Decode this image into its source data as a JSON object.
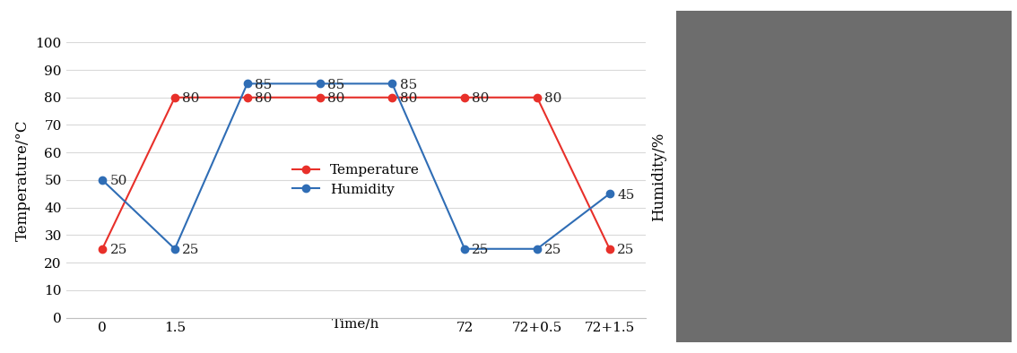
{
  "chart_data": {
    "type": "line",
    "x_label": "Time/h",
    "y_label": "Temperature/°C",
    "y2_label": "Humidity/%",
    "categories": [
      "0",
      "1.5",
      null,
      null,
      null,
      "72",
      "72+0.5",
      "72+1.5"
    ],
    "series": [
      {
        "name": "Temperature",
        "color": "#e8302a",
        "marker": "o",
        "line_style": "solid",
        "values": [
          25,
          80,
          80,
          80,
          80,
          80,
          80,
          25
        ]
      },
      {
        "name": "Humidity",
        "color": "#2f6db5",
        "marker": "o",
        "line_style": "solid",
        "values": [
          50,
          25,
          85,
          85,
          85,
          25,
          25,
          45
        ]
      }
    ],
    "ylim": [
      0,
      100
    ],
    "yticks": [
      0,
      10,
      20,
      30,
      40,
      50,
      60,
      70,
      80,
      90,
      100
    ],
    "grid": true,
    "legend": "center",
    "data_labels": true
  }
}
